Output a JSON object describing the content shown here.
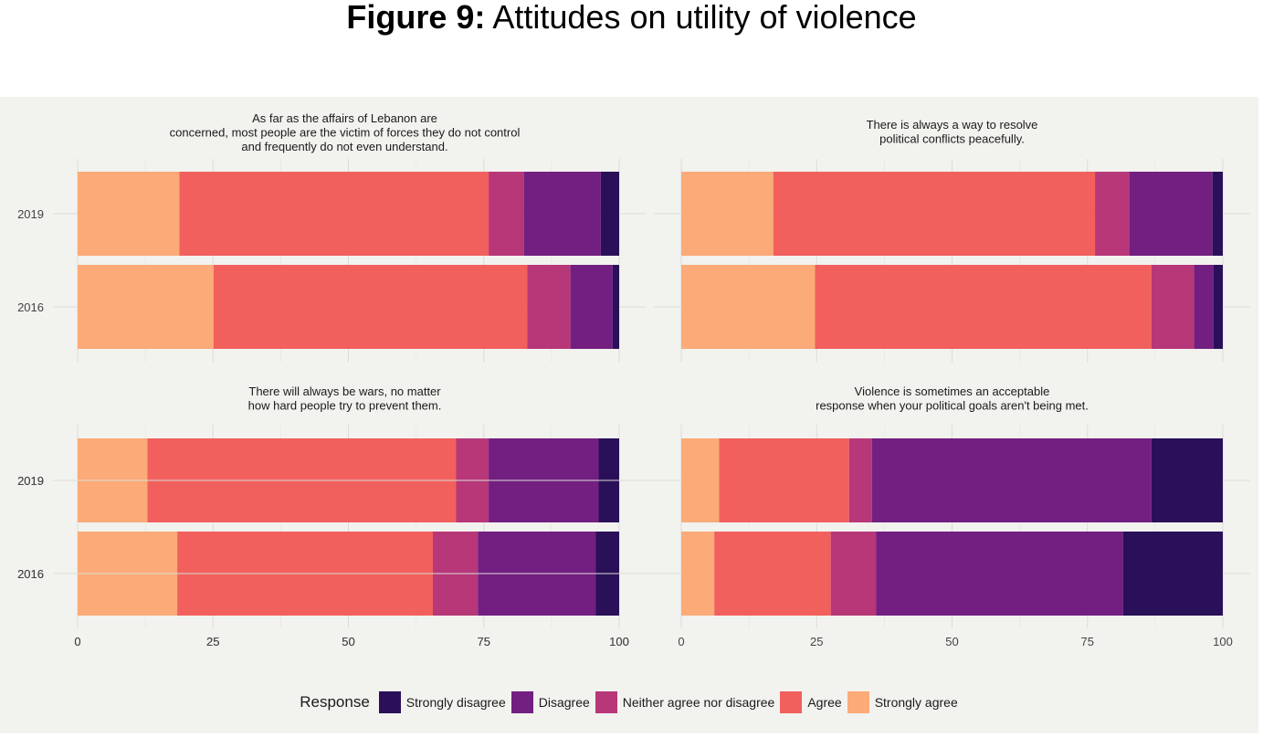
{
  "figure": {
    "label": "Figure 9:",
    "title": "Attitudes on utility of violence"
  },
  "legend": {
    "title": "Response",
    "items": [
      {
        "label": "Strongly disagree",
        "color": "#2a1058"
      },
      {
        "label": "Disagree",
        "color": "#721f81"
      },
      {
        "label": "Neither agree nor disagree",
        "color": "#b73779"
      },
      {
        "label": "Agree",
        "color": "#f1605d"
      },
      {
        "label": "Strongly agree",
        "color": "#fcaa78"
      }
    ]
  },
  "chart_data": [
    {
      "type": "bar",
      "stacked": true,
      "orientation": "horizontal",
      "title": "As far as the affairs of Lebanon are\nconcerned, most people are the victim of forces they do not control\nand frequently do not even understand.",
      "categories": [
        "2019",
        "2016"
      ],
      "xlim": [
        0,
        100
      ],
      "xticks": [
        0,
        25,
        50,
        75,
        100
      ],
      "series": [
        {
          "name": "Strongly agree",
          "values": [
            18.8,
            25.1
          ]
        },
        {
          "name": "Agree",
          "values": [
            57.1,
            57.9
          ]
        },
        {
          "name": "Neither agree nor disagree",
          "values": [
            6.5,
            8.0
          ]
        },
        {
          "name": "Disagree",
          "values": [
            14.2,
            7.8
          ]
        },
        {
          "name": "Strongly disagree",
          "values": [
            3.4,
            1.2
          ]
        }
      ]
    },
    {
      "type": "bar",
      "stacked": true,
      "orientation": "horizontal",
      "title": "There is always a way to resolve\npolitical conflicts peacefully.",
      "categories": [
        "2019",
        "2016"
      ],
      "xlim": [
        0,
        100
      ],
      "xticks": [
        0,
        25,
        50,
        75,
        100
      ],
      "series": [
        {
          "name": "Strongly agree",
          "values": [
            17.0,
            24.7
          ]
        },
        {
          "name": "Agree",
          "values": [
            59.4,
            62.1
          ]
        },
        {
          "name": "Neither agree nor disagree",
          "values": [
            6.4,
            7.9
          ]
        },
        {
          "name": "Disagree",
          "values": [
            15.3,
            3.6
          ]
        },
        {
          "name": "Strongly disagree",
          "values": [
            1.9,
            1.7
          ]
        }
      ]
    },
    {
      "type": "bar",
      "stacked": true,
      "orientation": "horizontal",
      "title": "There will always be wars, no matter\nhow hard people try to prevent them.",
      "categories": [
        "2019",
        "2016"
      ],
      "xlim": [
        0,
        100
      ],
      "xticks": [
        0,
        25,
        50,
        75,
        100
      ],
      "series": [
        {
          "name": "Strongly agree",
          "values": [
            12.9,
            18.4
          ]
        },
        {
          "name": "Agree",
          "values": [
            57.0,
            47.2
          ]
        },
        {
          "name": "Neither agree nor disagree",
          "values": [
            6.0,
            8.3
          ]
        },
        {
          "name": "Disagree",
          "values": [
            20.3,
            21.8
          ]
        },
        {
          "name": "Strongly disagree",
          "values": [
            3.8,
            4.3
          ]
        }
      ]
    },
    {
      "type": "bar",
      "stacked": true,
      "orientation": "horizontal",
      "title": "Violence is sometimes an acceptable\nresponse when your political goals aren't being met.",
      "categories": [
        "2019",
        "2016"
      ],
      "xlim": [
        0,
        100
      ],
      "xticks": [
        0,
        25,
        50,
        75,
        100
      ],
      "series": [
        {
          "name": "Strongly agree",
          "values": [
            7.0,
            6.1
          ]
        },
        {
          "name": "Agree",
          "values": [
            24.0,
            21.5
          ]
        },
        {
          "name": "Neither agree nor disagree",
          "values": [
            4.2,
            8.4
          ]
        },
        {
          "name": "Disagree",
          "values": [
            51.6,
            45.6
          ]
        },
        {
          "name": "Strongly disagree",
          "values": [
            13.2,
            18.4
          ]
        }
      ]
    }
  ]
}
